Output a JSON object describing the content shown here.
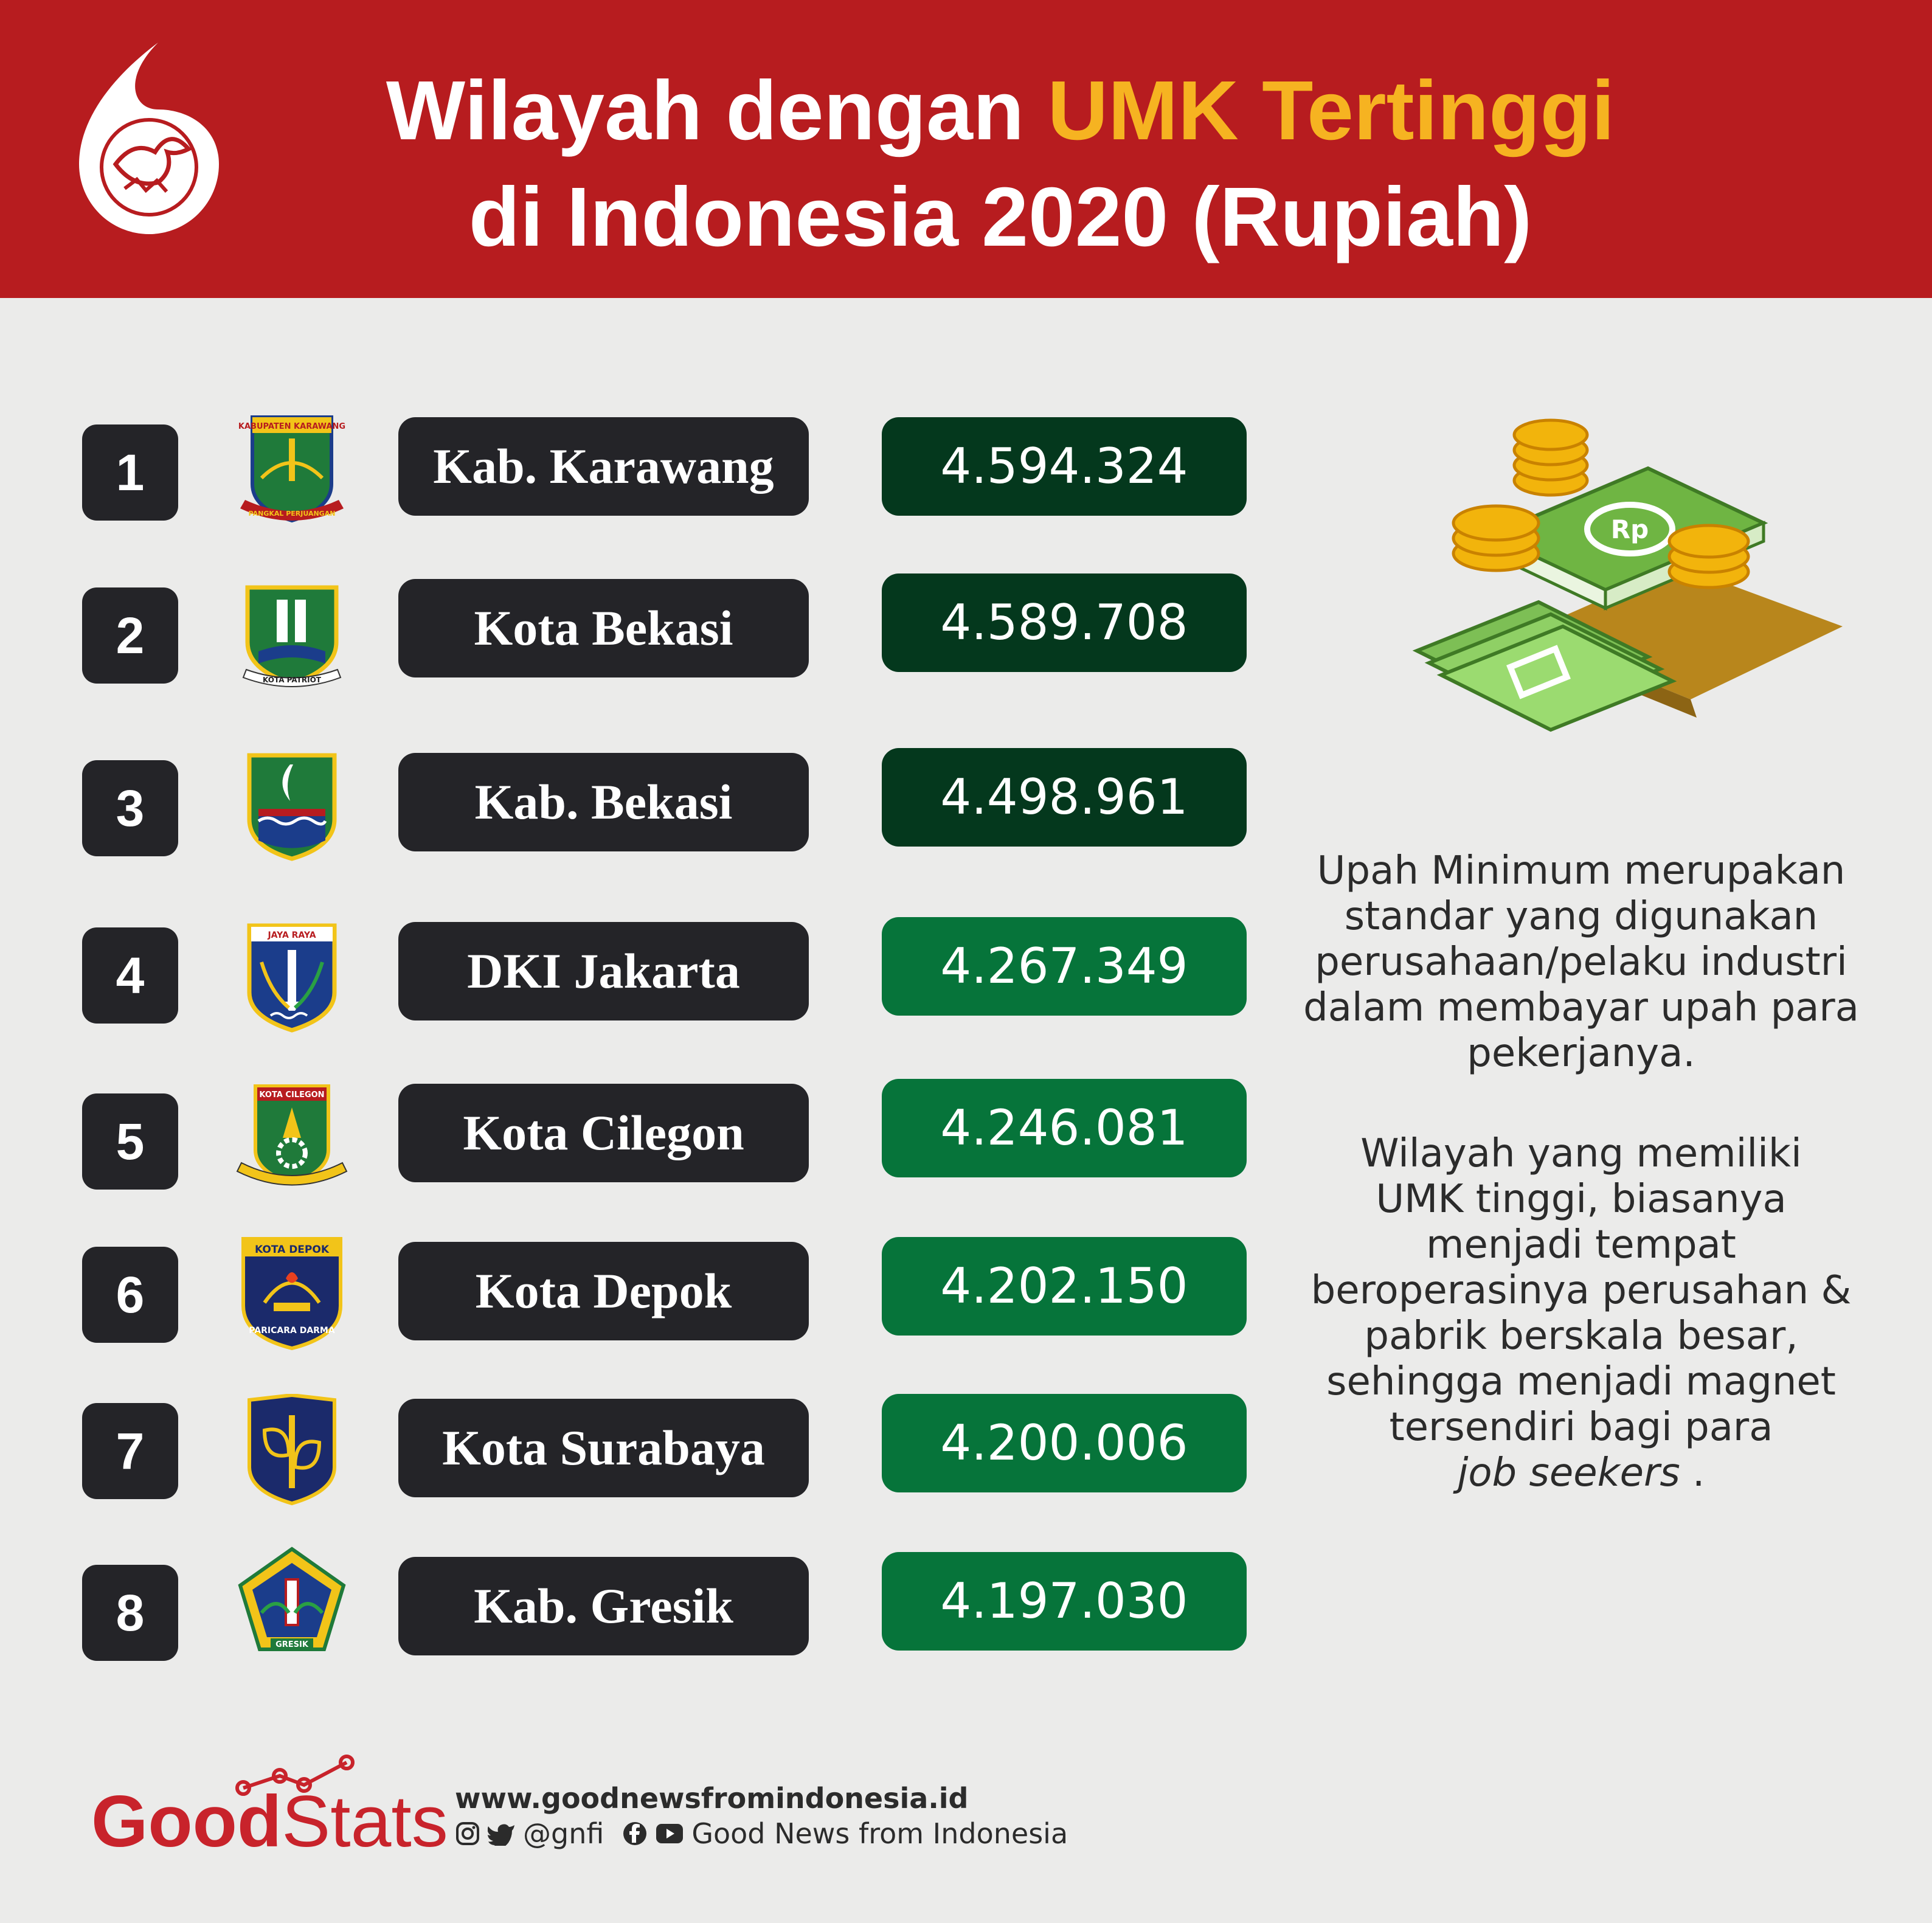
{
  "header": {
    "title_line1_pre": "Wilayah dengan ",
    "title_line1_accent": "UMK Tertinggi",
    "title_line2": "di Indonesia 2020 (Rupiah)"
  },
  "colors": {
    "header_red": "#b71c1f",
    "accent_yellow": "#f6b321",
    "dark_green": "#04381d",
    "green": "#06743a",
    "label_dark": "#242428"
  },
  "chart_data": {
    "type": "table",
    "title": "Wilayah dengan UMK Tertinggi di Indonesia 2020 (Rupiah)",
    "rows": [
      {
        "rank": "1",
        "region": "Kab. Karawang",
        "value": 4594324,
        "display": "4.594.324"
      },
      {
        "rank": "2",
        "region": "Kota Bekasi",
        "value": 4589708,
        "display": "4.589.708"
      },
      {
        "rank": "3",
        "region": "Kab. Bekasi",
        "value": 4498961,
        "display": "4.498.961"
      },
      {
        "rank": "4",
        "region": "DKI Jakarta",
        "value": 4267349,
        "display": "4.267.349"
      },
      {
        "rank": "5",
        "region": "Kota Cilegon",
        "value": 4246081,
        "display": "4.246.081"
      },
      {
        "rank": "6",
        "region": "Kota Depok",
        "value": 4202150,
        "display": "4.202.150"
      },
      {
        "rank": "7",
        "region": "Kota Surabaya",
        "value": 4200006,
        "display": "4.200.006"
      },
      {
        "rank": "8",
        "region": "Kab. Gresik",
        "value": 4197030,
        "display": "4.197.030"
      }
    ]
  },
  "emblems": {
    "karawang_top": "KABUPATEN KARAWANG",
    "karawang_bottom": "PANGKAL PERJUANGAN",
    "bekasi_kota_bottom": "KOTA PATRIOT",
    "jakarta_top": "JAYA RAYA",
    "cilegon_top": "KOTA CILEGON",
    "depok_top": "KOTA DEPOK",
    "depok_bottom": "PARICARA DARMA",
    "gresik_bottom": "GRESIK"
  },
  "description": {
    "p1_lines": [
      "Upah Minimum merupakan",
      "standar yang digunakan",
      "perusahaan/pelaku industri",
      "dalam membayar upah para",
      "pekerjanya."
    ],
    "p2_lines": [
      "Wilayah yang memiliki",
      "UMK tinggi, biasanya",
      "menjadi tempat",
      "beroperasinya perusahan &",
      "pabrik berskala besar,",
      "sehingga menjadi magnet",
      "tersendiri bagi para"
    ],
    "p2_italic": "job seekers",
    "p2_end": " ."
  },
  "money_icon": {
    "label": "Rp"
  },
  "footer": {
    "brand_good": "Good",
    "brand_stats": "Stats",
    "website": "www.goodnewsfromindonesia.id",
    "handle": "@gnfi",
    "name": "Good News from Indonesia"
  }
}
